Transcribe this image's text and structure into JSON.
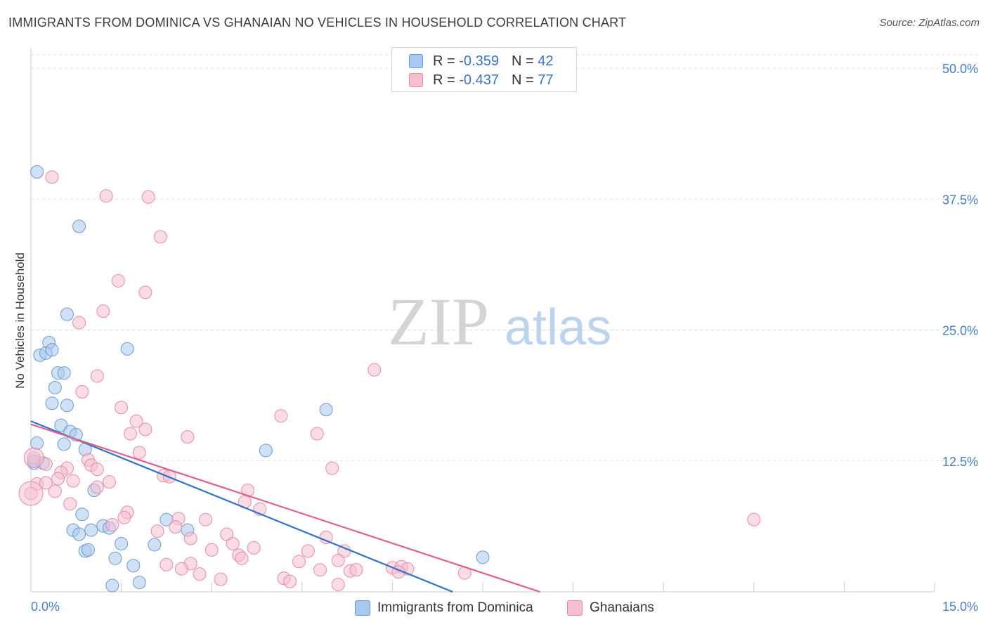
{
  "header": {
    "title": "IMMIGRANTS FROM DOMINICA VS GHANAIAN NO VEHICLES IN HOUSEHOLD CORRELATION CHART",
    "source": "Source: ZipAtlas.com"
  },
  "watermark": {
    "part1": "ZIP",
    "part2": "atlas"
  },
  "legend": {
    "rows": [
      {
        "r_label": "R =",
        "r_value": "-0.359",
        "n_label": "N =",
        "n_value": "42"
      },
      {
        "r_label": "R =",
        "r_value": "-0.437",
        "n_label": "N =",
        "n_value": "77"
      }
    ]
  },
  "colors": {
    "blue_fill": "#a9c8ef",
    "blue_stroke": "#6a9ad6",
    "blue_line": "#2f72c8",
    "pink_fill": "#f6bfd0",
    "pink_stroke": "#e88aa9",
    "pink_line": "#e0628e"
  },
  "chart_data": {
    "type": "scatter",
    "title": "IMMIGRANTS FROM DOMINICA VS GHANAIAN NO VEHICLES IN HOUSEHOLD CORRELATION CHART",
    "xlabel": "",
    "ylabel": "No Vehicles in Household",
    "xlim": [
      0,
      15
    ],
    "ylim": [
      0,
      50
    ],
    "x_tick_labels": [
      "0.0%",
      "15.0%"
    ],
    "y_ticks": [
      12.5,
      25.0,
      37.5,
      50.0
    ],
    "y_tick_labels": [
      "12.5%",
      "25.0%",
      "37.5%",
      "50.0%"
    ],
    "grid": true,
    "series": [
      {
        "name": "Immigrants from Dominica",
        "r": -0.359,
        "n": 42,
        "trend": {
          "x": [
            0.0,
            7.0
          ],
          "y": [
            16.3,
            0.0
          ]
        },
        "points": [
          {
            "x": 0.1,
            "y": 40.1
          },
          {
            "x": 0.8,
            "y": 34.9
          },
          {
            "x": 0.6,
            "y": 26.5
          },
          {
            "x": 0.3,
            "y": 23.8
          },
          {
            "x": 0.15,
            "y": 22.6
          },
          {
            "x": 0.25,
            "y": 22.8
          },
          {
            "x": 0.35,
            "y": 23.1
          },
          {
            "x": 1.6,
            "y": 23.2
          },
          {
            "x": 0.45,
            "y": 20.9
          },
          {
            "x": 0.55,
            "y": 20.9
          },
          {
            "x": 0.4,
            "y": 19.5
          },
          {
            "x": 0.35,
            "y": 18.0
          },
          {
            "x": 0.6,
            "y": 17.8
          },
          {
            "x": 0.5,
            "y": 15.9
          },
          {
            "x": 0.65,
            "y": 15.3
          },
          {
            "x": 0.75,
            "y": 15.0
          },
          {
            "x": 0.55,
            "y": 14.1
          },
          {
            "x": 0.1,
            "y": 14.2
          },
          {
            "x": 0.9,
            "y": 13.6
          },
          {
            "x": 0.05,
            "y": 12.3
          },
          {
            "x": 0.2,
            "y": 12.3
          },
          {
            "x": 3.9,
            "y": 13.5
          },
          {
            "x": 4.9,
            "y": 17.4
          },
          {
            "x": 1.05,
            "y": 9.7
          },
          {
            "x": 0.85,
            "y": 7.4
          },
          {
            "x": 2.25,
            "y": 6.9
          },
          {
            "x": 1.2,
            "y": 6.3
          },
          {
            "x": 0.7,
            "y": 5.9
          },
          {
            "x": 1.0,
            "y": 5.9
          },
          {
            "x": 1.3,
            "y": 6.1
          },
          {
            "x": 0.8,
            "y": 5.5
          },
          {
            "x": 2.6,
            "y": 5.9
          },
          {
            "x": 1.5,
            "y": 4.6
          },
          {
            "x": 2.05,
            "y": 4.5
          },
          {
            "x": 0.9,
            "y": 3.9
          },
          {
            "x": 0.95,
            "y": 4.0
          },
          {
            "x": 1.4,
            "y": 3.2
          },
          {
            "x": 1.7,
            "y": 2.5
          },
          {
            "x": 7.5,
            "y": 3.3
          },
          {
            "x": 1.35,
            "y": 0.6
          },
          {
            "x": 1.8,
            "y": 0.9
          },
          {
            "x": 0.05,
            "y": 12.5
          }
        ]
      },
      {
        "name": "Ghanaians",
        "r": -0.437,
        "n": 77,
        "trend": {
          "x": [
            0.0,
            8.45
          ],
          "y": [
            16.0,
            0.0
          ]
        },
        "points": [
          {
            "x": 0.35,
            "y": 39.6
          },
          {
            "x": 1.25,
            "y": 37.8
          },
          {
            "x": 1.95,
            "y": 37.7
          },
          {
            "x": 2.15,
            "y": 33.9
          },
          {
            "x": 1.45,
            "y": 29.7
          },
          {
            "x": 1.9,
            "y": 28.6
          },
          {
            "x": 1.2,
            "y": 26.8
          },
          {
            "x": 0.8,
            "y": 25.7
          },
          {
            "x": 5.7,
            "y": 21.2
          },
          {
            "x": 1.1,
            "y": 20.6
          },
          {
            "x": 0.85,
            "y": 19.1
          },
          {
            "x": 1.5,
            "y": 17.6
          },
          {
            "x": 4.15,
            "y": 16.8
          },
          {
            "x": 1.75,
            "y": 16.3
          },
          {
            "x": 1.9,
            "y": 15.5
          },
          {
            "x": 1.65,
            "y": 15.1
          },
          {
            "x": 4.75,
            "y": 15.1
          },
          {
            "x": 2.6,
            "y": 14.8
          },
          {
            "x": 0.95,
            "y": 12.6
          },
          {
            "x": 1.0,
            "y": 12.1
          },
          {
            "x": 1.8,
            "y": 13.3
          },
          {
            "x": 0.25,
            "y": 12.2
          },
          {
            "x": 0.6,
            "y": 11.8
          },
          {
            "x": 0.5,
            "y": 11.4
          },
          {
            "x": 1.1,
            "y": 11.7
          },
          {
            "x": 2.2,
            "y": 11.1
          },
          {
            "x": 2.3,
            "y": 11.0
          },
          {
            "x": 5.0,
            "y": 11.8
          },
          {
            "x": 0.1,
            "y": 10.3
          },
          {
            "x": 0.25,
            "y": 10.4
          },
          {
            "x": 0.45,
            "y": 10.8
          },
          {
            "x": 0.7,
            "y": 10.6
          },
          {
            "x": 1.3,
            "y": 10.5
          },
          {
            "x": 1.1,
            "y": 10.0
          },
          {
            "x": 0.4,
            "y": 9.6
          },
          {
            "x": 3.6,
            "y": 9.7
          },
          {
            "x": 3.55,
            "y": 8.6
          },
          {
            "x": 3.8,
            "y": 7.9
          },
          {
            "x": 0.65,
            "y": 8.4
          },
          {
            "x": 1.6,
            "y": 7.6
          },
          {
            "x": 1.55,
            "y": 7.1
          },
          {
            "x": 2.45,
            "y": 7.0
          },
          {
            "x": 2.9,
            "y": 6.9
          },
          {
            "x": 12.0,
            "y": 6.9
          },
          {
            "x": 1.35,
            "y": 6.4
          },
          {
            "x": 2.4,
            "y": 6.2
          },
          {
            "x": 2.1,
            "y": 5.8
          },
          {
            "x": 3.25,
            "y": 5.5
          },
          {
            "x": 2.65,
            "y": 5.1
          },
          {
            "x": 4.9,
            "y": 5.2
          },
          {
            "x": 3.35,
            "y": 4.6
          },
          {
            "x": 3.0,
            "y": 4.0
          },
          {
            "x": 3.7,
            "y": 4.2
          },
          {
            "x": 4.6,
            "y": 3.9
          },
          {
            "x": 5.2,
            "y": 3.9
          },
          {
            "x": 3.45,
            "y": 3.5
          },
          {
            "x": 3.5,
            "y": 3.2
          },
          {
            "x": 4.45,
            "y": 2.9
          },
          {
            "x": 5.1,
            "y": 3.0
          },
          {
            "x": 2.25,
            "y": 2.6
          },
          {
            "x": 2.65,
            "y": 2.7
          },
          {
            "x": 2.5,
            "y": 2.2
          },
          {
            "x": 4.8,
            "y": 2.1
          },
          {
            "x": 5.3,
            "y": 2.0
          },
          {
            "x": 5.4,
            "y": 2.1
          },
          {
            "x": 6.0,
            "y": 2.3
          },
          {
            "x": 6.15,
            "y": 2.4
          },
          {
            "x": 6.25,
            "y": 2.2
          },
          {
            "x": 6.1,
            "y": 1.9
          },
          {
            "x": 7.2,
            "y": 1.8
          },
          {
            "x": 2.8,
            "y": 1.7
          },
          {
            "x": 3.15,
            "y": 1.2
          },
          {
            "x": 4.2,
            "y": 1.3
          },
          {
            "x": 4.3,
            "y": 1.0
          },
          {
            "x": 5.1,
            "y": 0.7
          },
          {
            "x": 0.05,
            "y": 12.8
          },
          {
            "x": 0.0,
            "y": 9.4
          }
        ]
      }
    ]
  }
}
